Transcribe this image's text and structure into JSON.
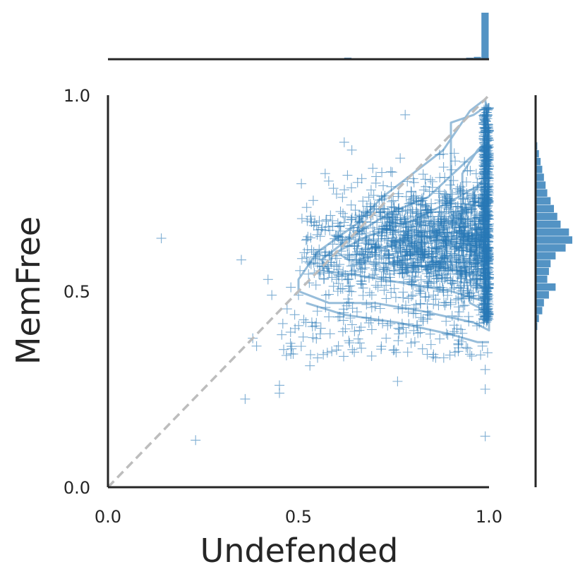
{
  "chart_data": {
    "type": "scatter",
    "subtype": "joint-plot",
    "title": "",
    "xlabel": "Undefended",
    "ylabel": "MemFree",
    "xlim": [
      0,
      1
    ],
    "ylim": [
      0,
      1
    ],
    "xticks": [
      "0.0",
      "0.5",
      "1.0"
    ],
    "yticks": [
      "0.0",
      "0.5",
      "1.0"
    ],
    "grid": false,
    "marker": "+",
    "color": "#2878b5",
    "reference_line": {
      "x": [
        0,
        1
      ],
      "y": [
        0,
        1
      ],
      "style": "dashed",
      "color": "#bdbdbd"
    },
    "representative_points": [
      [
        0.14,
        0.635
      ],
      [
        0.23,
        0.12
      ],
      [
        0.35,
        0.58
      ],
      [
        0.36,
        0.225
      ],
      [
        0.38,
        0.38
      ],
      [
        0.39,
        0.36
      ],
      [
        0.42,
        0.53
      ],
      [
        0.43,
        0.49
      ],
      [
        0.45,
        0.26
      ],
      [
        0.45,
        0.24
      ],
      [
        0.47,
        0.455
      ],
      [
        0.48,
        0.34
      ],
      [
        0.48,
        0.51
      ],
      [
        0.49,
        0.44
      ],
      [
        0.5,
        0.49
      ],
      [
        0.52,
        0.63
      ],
      [
        0.53,
        0.31
      ],
      [
        0.54,
        0.6
      ],
      [
        0.55,
        0.33
      ],
      [
        0.55,
        0.57
      ],
      [
        0.57,
        0.8
      ],
      [
        0.58,
        0.55
      ],
      [
        0.59,
        0.62
      ],
      [
        0.6,
        0.35
      ],
      [
        0.62,
        0.88
      ],
      [
        0.64,
        0.86
      ],
      [
        0.66,
        0.4
      ],
      [
        0.68,
        0.7
      ],
      [
        0.7,
        0.61
      ],
      [
        0.72,
        0.65
      ],
      [
        0.73,
        0.38
      ],
      [
        0.76,
        0.27
      ],
      [
        0.78,
        0.95
      ],
      [
        0.78,
        0.58
      ],
      [
        0.8,
        0.49
      ],
      [
        0.82,
        0.72
      ],
      [
        0.84,
        0.44
      ],
      [
        0.86,
        0.33
      ],
      [
        0.88,
        0.85
      ],
      [
        0.9,
        0.62
      ],
      [
        0.92,
        0.46
      ],
      [
        0.94,
        0.7
      ],
      [
        0.96,
        0.55
      ],
      [
        0.99,
        0.13
      ],
      [
        0.99,
        0.25
      ],
      [
        0.99,
        0.3
      ],
      [
        0.99,
        0.9
      ]
    ],
    "marginal_x_histogram": {
      "bins": [
        {
          "x0": 0.6,
          "x1": 0.62,
          "count": 1
        },
        {
          "x0": 0.62,
          "x1": 0.64,
          "count": 2
        },
        {
          "x0": 0.64,
          "x1": 0.66,
          "count": 1
        },
        {
          "x0": 0.92,
          "x1": 0.94,
          "count": 1
        },
        {
          "x0": 0.94,
          "x1": 0.96,
          "count": 2
        },
        {
          "x0": 0.96,
          "x1": 0.98,
          "count": 3
        },
        {
          "x0": 0.98,
          "x1": 1.0,
          "count": 60
        }
      ]
    },
    "marginal_y_histogram": {
      "bins": [
        {
          "y0": 0.4,
          "y1": 0.42,
          "count": 1
        },
        {
          "y0": 0.42,
          "y1": 0.44,
          "count": 2
        },
        {
          "y0": 0.44,
          "y1": 0.46,
          "count": 4
        },
        {
          "y0": 0.46,
          "y1": 0.48,
          "count": 5
        },
        {
          "y0": 0.48,
          "y1": 0.5,
          "count": 8
        },
        {
          "y0": 0.5,
          "y1": 0.52,
          "count": 12
        },
        {
          "y0": 0.52,
          "y1": 0.54,
          "count": 7
        },
        {
          "y0": 0.54,
          "y1": 0.56,
          "count": 8
        },
        {
          "y0": 0.56,
          "y1": 0.58,
          "count": 9
        },
        {
          "y0": 0.58,
          "y1": 0.6,
          "count": 12
        },
        {
          "y0": 0.6,
          "y1": 0.62,
          "count": 18
        },
        {
          "y0": 0.62,
          "y1": 0.64,
          "count": 22
        },
        {
          "y0": 0.64,
          "y1": 0.66,
          "count": 20
        },
        {
          "y0": 0.66,
          "y1": 0.68,
          "count": 15
        },
        {
          "y0": 0.68,
          "y1": 0.7,
          "count": 13
        },
        {
          "y0": 0.7,
          "y1": 0.72,
          "count": 11
        },
        {
          "y0": 0.72,
          "y1": 0.74,
          "count": 9
        },
        {
          "y0": 0.74,
          "y1": 0.76,
          "count": 7
        },
        {
          "y0": 0.76,
          "y1": 0.78,
          "count": 6
        },
        {
          "y0": 0.78,
          "y1": 0.8,
          "count": 5
        },
        {
          "y0": 0.8,
          "y1": 0.82,
          "count": 4
        },
        {
          "y0": 0.82,
          "y1": 0.84,
          "count": 3
        },
        {
          "y0": 0.84,
          "y1": 0.86,
          "count": 2
        },
        {
          "y0": 0.86,
          "y1": 0.88,
          "count": 1
        }
      ]
    },
    "density_contour_color": "#8cb6d6"
  }
}
